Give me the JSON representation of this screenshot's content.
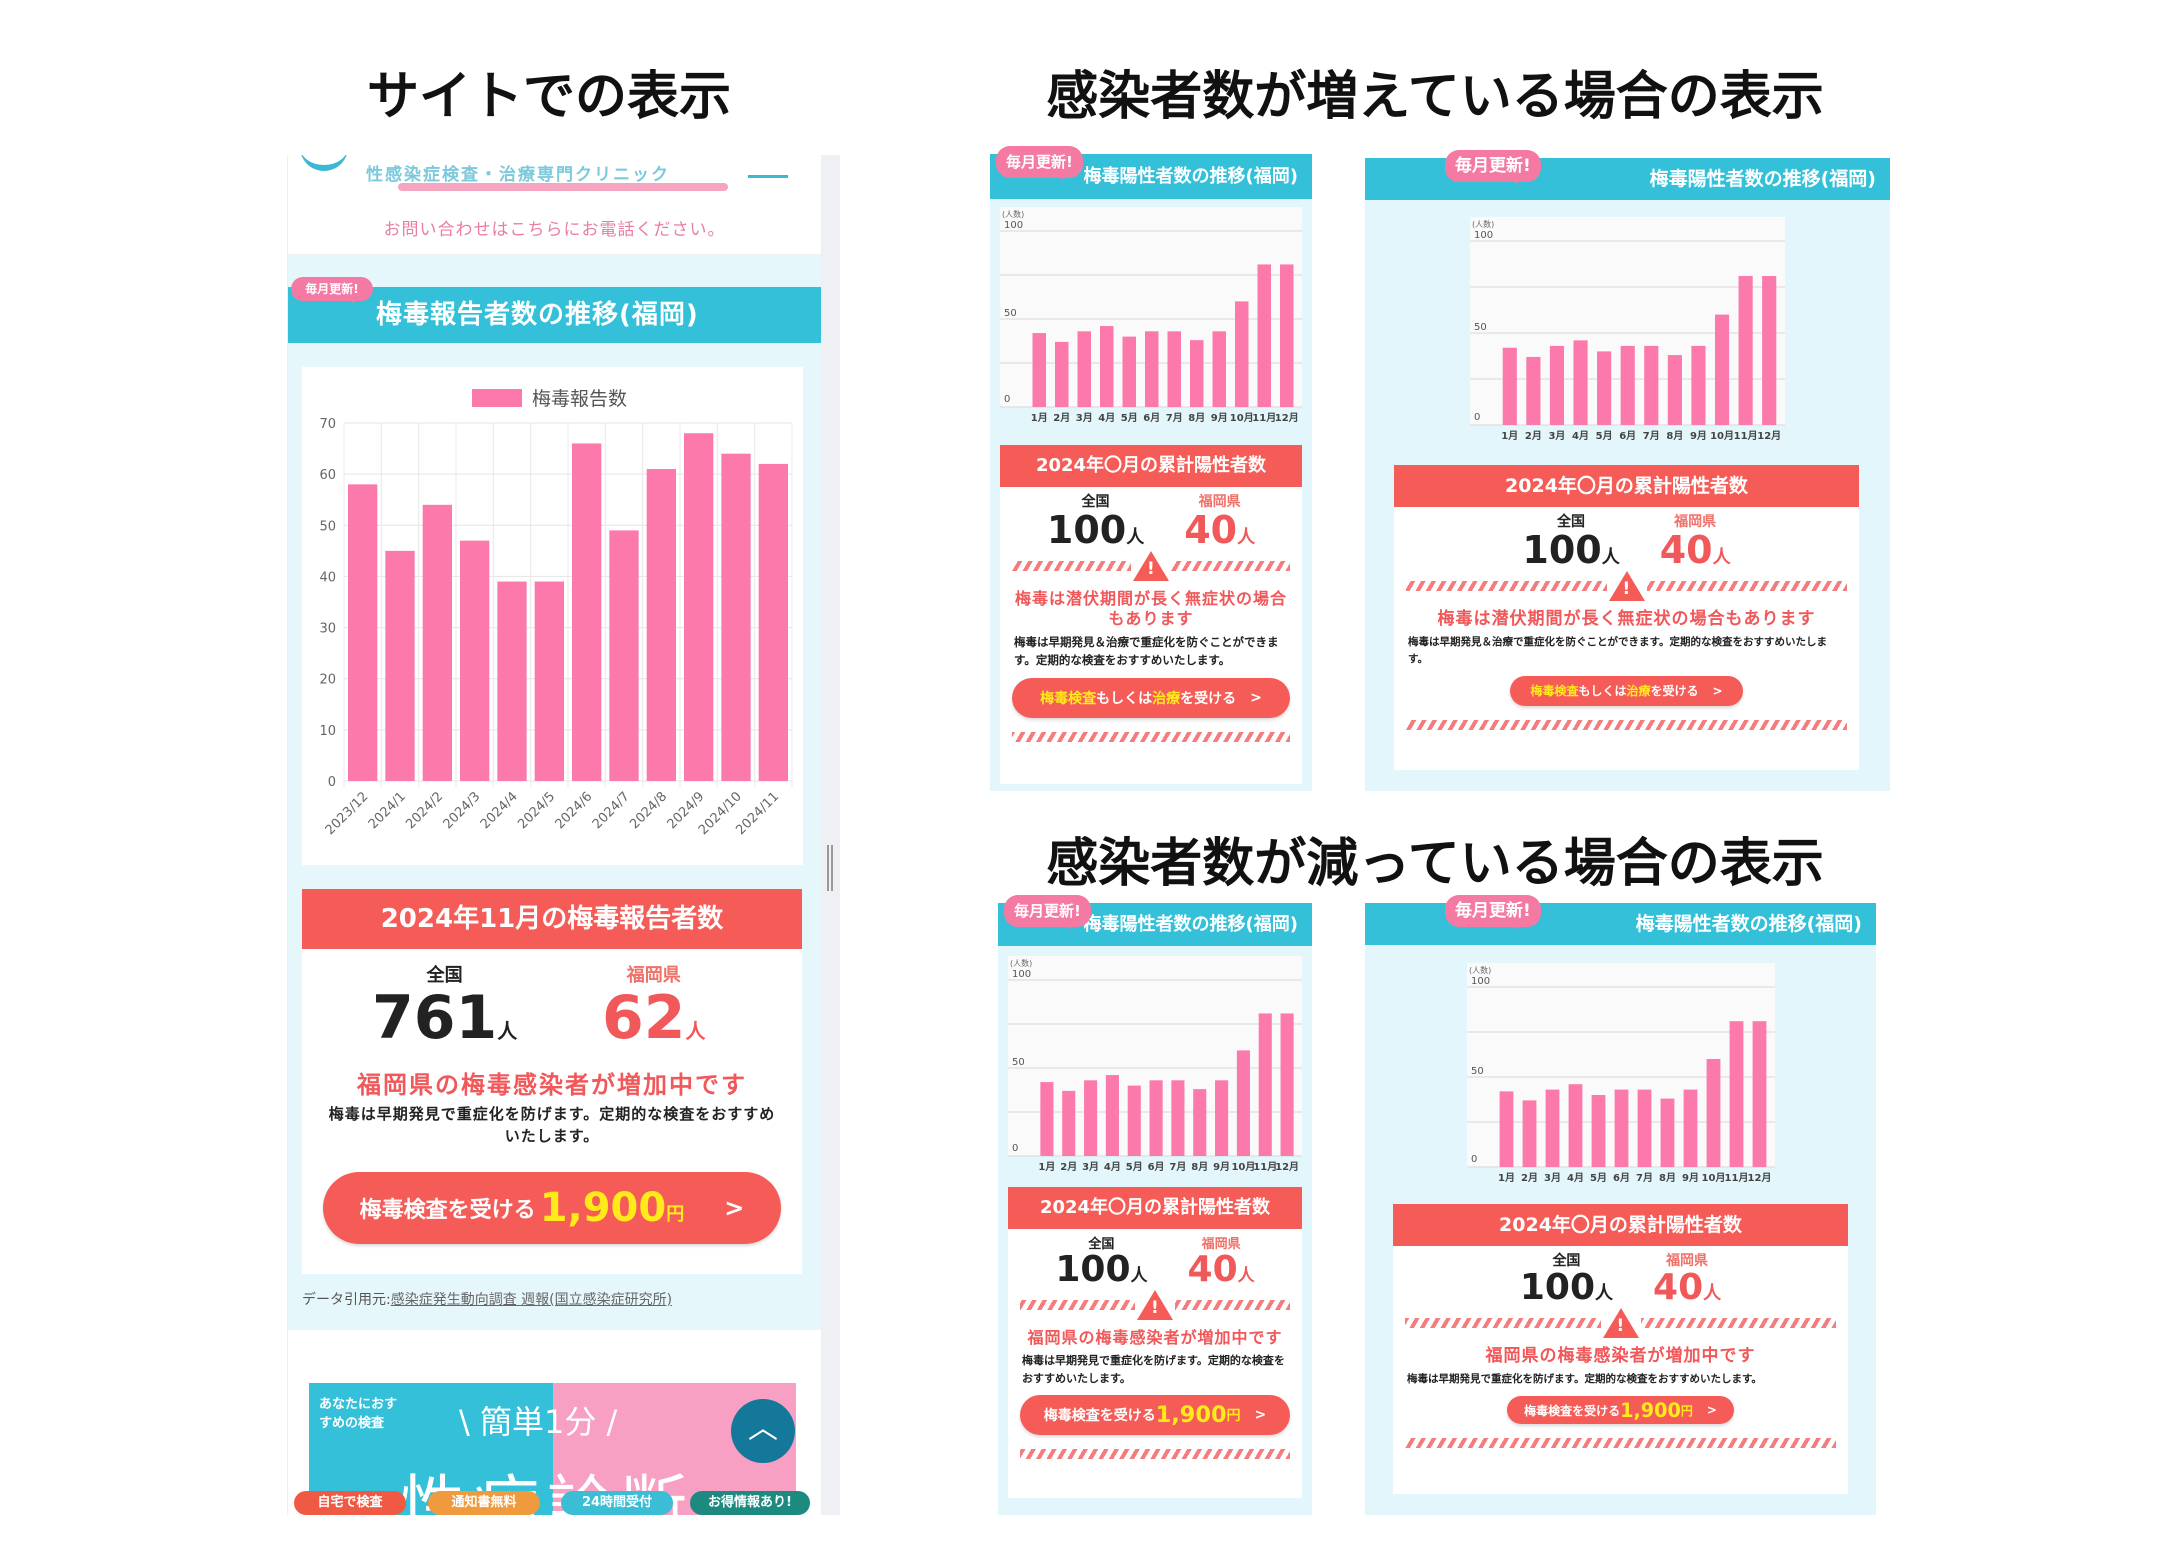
{
  "titles": {
    "site": "サイトでの表示",
    "increase": "感染者数が増えている場合の表示",
    "decrease": "感染者数が減っている場合の表示"
  },
  "site": {
    "clinic_tagline": "性感染症検査・治療専門クリニック",
    "contact_note": "お問い合わせはこちらにお電話ください。",
    "badge": "毎月更新!",
    "section_title": "梅毒報告者数の推移(福岡)",
    "summary": {
      "title": "2024年11月の梅毒報告者数",
      "national_label": "全国",
      "national_value": "761",
      "pref_label": "福岡県",
      "pref_value": "62",
      "unit": "人",
      "warning": "福岡県の梅毒感染者が増加中です",
      "description": "梅毒は早期発見で重症化を防げます。定期的な検査をおすすめいたします。",
      "button": {
        "label": "梅毒検査を受ける",
        "price": "1,900",
        "currency": "円",
        "arrow": ">"
      }
    },
    "source": {
      "label": "データ引用元:",
      "link": "感染症発生動向調査 週報(国立感染症研究所)"
    },
    "banner": {
      "bubble": "あなたにおすすめの検査",
      "catch": "\\ 簡単1分 /",
      "title": "性病診断"
    },
    "pills": [
      {
        "label": "自宅で検査",
        "color": "#f05a45"
      },
      {
        "label": "通知書無料",
        "color": "#f09a3e"
      },
      {
        "label": "24時間受付",
        "color": "#3bbdd6"
      },
      {
        "label": "お得情報あり!",
        "color": "#1d8a80"
      }
    ],
    "scroll_top_icon": "chevron-up-icon"
  },
  "mockups": [
    {
      "badge": "毎月更新!",
      "header_title": "梅毒陽性者数の推移(福岡)",
      "summary": {
        "title": "2024年〇月の累計陽性者数",
        "national_label": "全国",
        "national_value": "100",
        "pref_label": "福岡県",
        "pref_value": "40",
        "unit": "人",
        "warning": "梅毒は潜伏期間が長く無症状の場合もあります",
        "description": "梅毒は早期発見＆治療で重症化を防ぐことができます。定期的な検査をおすすめいたします。",
        "button_parts": [
          {
            "text": "梅毒検査",
            "highlight": true
          },
          {
            "text": "もしくは",
            "highlight": false
          },
          {
            "text": "治療",
            "highlight": true
          },
          {
            "text": "を受ける",
            "highlight": false
          }
        ],
        "arrow": ">"
      }
    },
    {
      "badge": "毎月更新!",
      "header_title": "梅毒陽性者数の推移(福岡)",
      "summary": {
        "title": "2024年〇月の累計陽性者数",
        "national_label": "全国",
        "national_value": "100",
        "pref_label": "福岡県",
        "pref_value": "40",
        "unit": "人",
        "warning": "梅毒は潜伏期間が長く無症状の場合もあります",
        "description": "梅毒は早期発見＆治療で重症化を防ぐことができます。定期的な検査をおすすめいたします。",
        "button_parts": [
          {
            "text": "梅毒検査",
            "highlight": true
          },
          {
            "text": "もしくは",
            "highlight": false
          },
          {
            "text": "治療",
            "highlight": true
          },
          {
            "text": "を受ける",
            "highlight": false
          }
        ],
        "arrow": ">"
      }
    },
    {
      "badge": "毎月更新!",
      "header_title": "梅毒陽性者数の推移(福岡)",
      "summary": {
        "title": "2024年〇月の累計陽性者数",
        "national_label": "全国",
        "national_value": "100",
        "pref_label": "福岡県",
        "pref_value": "40",
        "unit": "人",
        "warning": "福岡県の梅毒感染者が増加中です",
        "description": "梅毒は早期発見で重症化を防げます。定期的な検査をおすすめいたします。",
        "button_parts": [
          {
            "text": "梅毒検査を受ける",
            "highlight": false
          },
          {
            "text": "1,900",
            "highlight": true,
            "big": true
          },
          {
            "text": "円",
            "highlight": true
          }
        ],
        "arrow": ">"
      }
    },
    {
      "badge": "毎月更新!",
      "header_title": "梅毒陽性者数の推移(福岡)",
      "summary": {
        "title": "2024年〇月の累計陽性者数",
        "national_label": "全国",
        "national_value": "100",
        "pref_label": "福岡県",
        "pref_value": "40",
        "unit": "人",
        "warning": "福岡県の梅毒感染者が増加中です",
        "description": "梅毒は早期発見で重症化を防げます。定期的な検査をおすすめいたします。",
        "button_parts": [
          {
            "text": "梅毒検査を受ける",
            "highlight": false
          },
          {
            "text": "1,900",
            "highlight": true,
            "big": true
          },
          {
            "text": "円",
            "highlight": true
          }
        ],
        "arrow": ">"
      }
    }
  ],
  "chart_data": [
    {
      "type": "bar",
      "legend": "梅毒報告数",
      "legend_position": "top",
      "categories": [
        "2023/12",
        "2024/1",
        "2024/2",
        "2024/3",
        "2024/4",
        "2024/5",
        "2024/6",
        "2024/7",
        "2024/8",
        "2024/9",
        "2024/10",
        "2024/11"
      ],
      "values": [
        58,
        45,
        54,
        47,
        39,
        39,
        66,
        49,
        61,
        68,
        64,
        62
      ],
      "yticks": [
        0,
        10,
        20,
        30,
        40,
        50,
        60,
        70
      ],
      "ylim": [
        0,
        70
      ],
      "grid": true,
      "color": "#fb7aab"
    },
    {
      "type": "bar",
      "ylabel": "(人数)",
      "categories": [
        "1月",
        "2月",
        "3月",
        "4月",
        "5月",
        "6月",
        "7月",
        "8月",
        "9月",
        "10月",
        "11月",
        "12月"
      ],
      "values": [
        42,
        37,
        43,
        46,
        40,
        43,
        43,
        38,
        43,
        60,
        81,
        81
      ],
      "yticks": [
        0,
        50,
        100
      ],
      "gridlines": [
        0,
        25,
        50,
        75,
        100
      ],
      "ylim": [
        0,
        100
      ],
      "grid": true,
      "color": "#fb7aab"
    }
  ]
}
